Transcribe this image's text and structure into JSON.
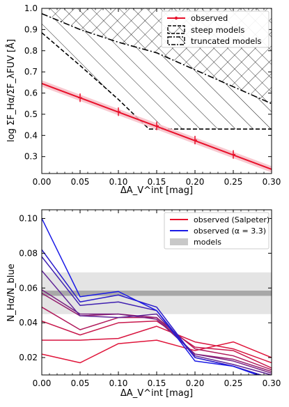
{
  "chart_data": [
    {
      "type": "line",
      "ylabel": "log ΣF_Hα/ΣF_λFUV [Å]",
      "xlabel": "ΔA_V^int [mag]",
      "xlim": [
        0.0,
        0.3
      ],
      "ylim": [
        0.22,
        1.0
      ],
      "xticks": [
        "0.00",
        "0.05",
        "0.10",
        "0.15",
        "0.20",
        "0.25",
        "0.30"
      ],
      "yticks": [
        "0.3",
        "0.4",
        "0.5",
        "0.6",
        "0.7",
        "0.8",
        "0.9",
        "1.0"
      ],
      "grid": false,
      "legend_position": "top-right",
      "legend": [
        {
          "label": "observed",
          "color": "#e8102a"
        },
        {
          "label": "steep models"
        },
        {
          "label": "truncated models"
        }
      ],
      "series": [
        {
          "name": "observed",
          "color": "#e8102a",
          "band_color": "#f7c0c8",
          "line": {
            "x": [
              0.0,
              0.3
            ],
            "y": [
              0.645,
              0.24
            ]
          },
          "band_halfwidth": 0.015,
          "points": [
            {
              "x": 0.05,
              "y": 0.578,
              "err": 0.02
            },
            {
              "x": 0.1,
              "y": 0.512,
              "err": 0.02
            },
            {
              "x": 0.15,
              "y": 0.445,
              "err": 0.02
            },
            {
              "x": 0.2,
              "y": 0.378,
              "err": 0.02
            },
            {
              "x": 0.25,
              "y": 0.31,
              "err": 0.02
            }
          ]
        },
        {
          "name": "steep models",
          "linestyle": "dashed",
          "hatch": "x",
          "upper_boundary": {
            "x": [
              0.0,
              0.008,
              0.3
            ],
            "y": [
              0.975,
              1.0,
              1.0
            ]
          },
          "lower_boundary": {
            "x": [
              0.0,
              0.05,
              0.1,
              0.15,
              0.3
            ],
            "y": [
              0.975,
              0.9,
              0.84,
              0.79,
              0.55
            ]
          }
        },
        {
          "name": "truncated models",
          "linestyle": "dashdot",
          "hatch": "/",
          "upper_boundary": {
            "x": [
              0.0,
              0.05,
              0.1,
              0.15,
              0.3
            ],
            "y": [
              0.975,
              0.9,
              0.84,
              0.79,
              0.55
            ]
          },
          "lower_boundary": {
            "x": [
              0.0,
              0.05,
              0.1,
              0.14,
              0.3
            ],
            "y": [
              0.885,
              0.73,
              0.57,
              0.43,
              0.43
            ]
          }
        }
      ]
    },
    {
      "type": "line",
      "ylabel": "N_Hα/N_blue",
      "xlabel": "ΔA_V^int [mag]",
      "xlim": [
        0.0,
        0.3
      ],
      "ylim": [
        0.01,
        0.105
      ],
      "xticks": [
        "0.00",
        "0.05",
        "0.10",
        "0.15",
        "0.20",
        "0.25",
        "0.30"
      ],
      "yticks": [
        "0.02",
        "0.04",
        "0.06",
        "0.08",
        "0.10"
      ],
      "grid": false,
      "legend_position": "top-right",
      "legend": [
        {
          "label": "observed (Salpeter)",
          "color": "#e8102a"
        },
        {
          "label": "observed (α = 3.3)",
          "color": "#1a1ae6"
        },
        {
          "label": "models",
          "color": "#c8c8c8"
        }
      ],
      "bands": [
        {
          "name": "models",
          "y0": 0.045,
          "y1": 0.069,
          "color": "#e4e4e4"
        },
        {
          "name": "models",
          "y0": 0.0555,
          "y1": 0.0585,
          "color": "#a8a8a8"
        }
      ],
      "x": [
        0.0,
        0.05,
        0.1,
        0.15,
        0.2,
        0.25,
        0.3
      ],
      "series": [
        {
          "color": "#e0153a",
          "values": [
            0.022,
            0.017,
            0.028,
            0.03,
            0.024,
            0.029,
            0.02
          ]
        },
        {
          "color": "#d81640",
          "values": [
            0.03,
            0.03,
            0.031,
            0.038,
            0.029,
            0.025,
            0.017
          ]
        },
        {
          "color": "#c8184c",
          "values": [
            0.041,
            0.033,
            0.04,
            0.041,
            0.026,
            0.024,
            0.014
          ]
        },
        {
          "color": "#b01b5c",
          "values": [
            0.049,
            0.036,
            0.043,
            0.043,
            0.025,
            0.021,
            0.013
          ]
        },
        {
          "color": "#95206f",
          "values": [
            0.057,
            0.044,
            0.045,
            0.043,
            0.022,
            0.019,
            0.012
          ]
        },
        {
          "color": "#7a2382",
          "values": [
            0.059,
            0.045,
            0.045,
            0.042,
            0.022,
            0.018,
            0.011
          ]
        },
        {
          "color": "#5f2596",
          "values": [
            0.07,
            0.044,
            0.043,
            0.045,
            0.021,
            0.016,
            0.01
          ]
        },
        {
          "color": "#3f20b0",
          "values": [
            0.078,
            0.05,
            0.052,
            0.047,
            0.02,
            0.015,
            0.008
          ]
        },
        {
          "color": "#2a1bcc",
          "values": [
            0.082,
            0.052,
            0.056,
            0.049,
            0.02,
            0.015,
            0.008
          ]
        },
        {
          "color": "#1a1ae6",
          "values": [
            0.1,
            0.055,
            0.058,
            0.047,
            0.018,
            0.015,
            0.007
          ]
        }
      ]
    }
  ]
}
